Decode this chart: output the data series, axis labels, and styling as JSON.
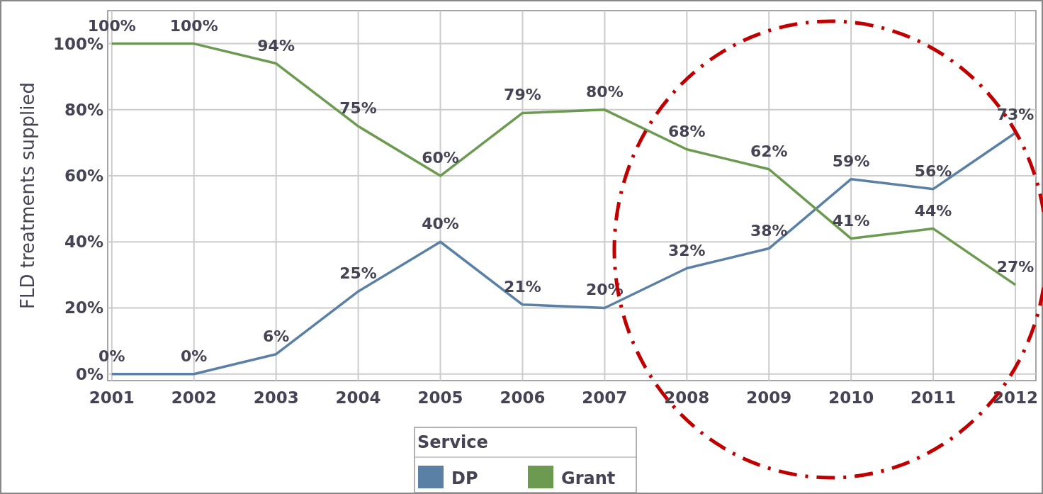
{
  "chart_data": {
    "type": "line",
    "ylabel": "FLD treatments supplied",
    "legend_title": "Service",
    "x": [
      2001,
      2002,
      2003,
      2004,
      2005,
      2006,
      2007,
      2008,
      2009,
      2010,
      2011,
      2012
    ],
    "xlim": [
      2000.95,
      2012.25
    ],
    "xticks": [
      2001,
      2002,
      2003,
      2004,
      2005,
      2006,
      2007,
      2008,
      2009,
      2010,
      2011,
      2012
    ],
    "ylim": [
      -2,
      110
    ],
    "yticks": [
      {
        "value": 0,
        "label": "0%"
      },
      {
        "value": 20,
        "label": "20%"
      },
      {
        "value": 40,
        "label": "40%"
      },
      {
        "value": 60,
        "label": "60%"
      },
      {
        "value": 80,
        "label": "80%"
      },
      {
        "value": 100,
        "label": "100%"
      }
    ],
    "grid": true,
    "legend": "bottom",
    "marker": "none",
    "line_style": "solid",
    "series": [
      {
        "name": "DP",
        "color": "#5b80a6",
        "values": [
          0,
          0,
          6,
          25,
          40,
          21,
          20,
          32,
          38,
          59,
          56,
          73
        ],
        "value_labels": [
          "0%",
          "0%",
          "6%",
          "25%",
          "40%",
          "21%",
          "20%",
          "32%",
          "38%",
          "59%",
          "56%",
          "73%"
        ]
      },
      {
        "name": "Grant",
        "color": "#6b9a50",
        "values": [
          100,
          100,
          94,
          75,
          60,
          79,
          80,
          68,
          62,
          41,
          44,
          27
        ],
        "value_labels": [
          "100%",
          "100%",
          "94%",
          "75%",
          "60%",
          "79%",
          "80%",
          "68%",
          "62%",
          "41%",
          "44%",
          "27%"
        ]
      }
    ]
  }
}
